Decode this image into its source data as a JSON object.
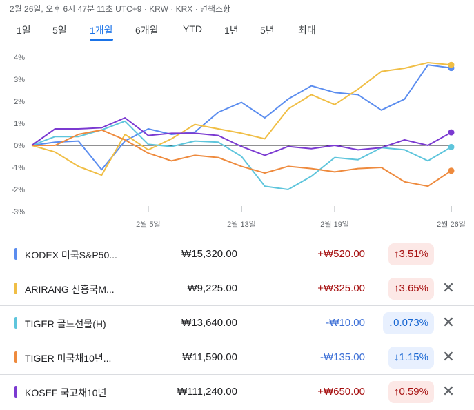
{
  "header": {
    "timestamp": "2월 26일, 오후 6시 47분 11초 UTC+9 · KRW · KRX · 면책조항"
  },
  "ranges": {
    "active_index": 2,
    "items": [
      "1일",
      "5일",
      "1개월",
      "6개월",
      "YTD",
      "1년",
      "5년",
      "최대"
    ]
  },
  "chart_data": {
    "type": "line",
    "yticks": [
      "4%",
      "3%",
      "2%",
      "1%",
      "0%",
      "-1%",
      "-2%",
      "-3%"
    ],
    "ylim": [
      -3,
      4
    ],
    "xlabels": [
      "2월 5일",
      "2월 13일",
      "2월 19일",
      "2월 26일"
    ],
    "xlabel_positions": [
      5,
      9,
      13,
      18
    ],
    "points": 19,
    "series": [
      {
        "name": "KODEX 미국S&P50...",
        "color": "#5b8def",
        "values": [
          0,
          0.15,
          0.2,
          -1.1,
          0.2,
          0.75,
          0.5,
          0.6,
          1.5,
          1.95,
          1.25,
          2.1,
          2.7,
          2.4,
          2.3,
          1.6,
          2.1,
          3.65,
          3.51
        ]
      },
      {
        "name": "ARIRANG 신흥국M...",
        "color": "#f0be45",
        "values": [
          0,
          -0.3,
          -0.95,
          -1.35,
          0.5,
          -0.2,
          0.3,
          0.95,
          0.75,
          0.55,
          0.3,
          1.65,
          2.3,
          1.85,
          2.55,
          3.35,
          3.5,
          3.75,
          3.65
        ]
      },
      {
        "name": "TIGER 골드선물(H)",
        "color": "#5ec5dc",
        "values": [
          0,
          0.4,
          0.4,
          0.7,
          1.1,
          0.05,
          -0.05,
          0.2,
          0.15,
          -0.5,
          -1.85,
          -2.0,
          -1.4,
          -0.55,
          -0.65,
          -0.1,
          -0.2,
          -0.7,
          -0.073
        ]
      },
      {
        "name": "TIGER 미국채10년...",
        "color": "#ee8a3d",
        "values": [
          0,
          0,
          0.5,
          0.7,
          0.25,
          -0.35,
          -0.7,
          -0.45,
          -0.55,
          -0.95,
          -1.25,
          -0.95,
          -1.05,
          -1.2,
          -1.05,
          -1.0,
          -1.65,
          -1.85,
          -1.15
        ]
      },
      {
        "name": "KOSEF 국고채10년",
        "color": "#7b3ad1",
        "values": [
          0,
          0.75,
          0.75,
          0.8,
          1.25,
          0.45,
          0.55,
          0.55,
          0.45,
          -0.05,
          -0.45,
          -0.05,
          -0.15,
          0,
          -0.2,
          -0.1,
          0.25,
          0,
          0.59
        ]
      }
    ]
  },
  "rows": [
    {
      "name": "KODEX 미국S&P50...",
      "color": "#5b8def",
      "price": "₩15,320.00",
      "change": "+₩520.00",
      "dir": "up",
      "pct": "↑3.51%",
      "removable": false
    },
    {
      "name": "ARIRANG 신흥국M...",
      "color": "#f0be45",
      "price": "₩9,225.00",
      "change": "+₩325.00",
      "dir": "up",
      "pct": "↑3.65%",
      "removable": true
    },
    {
      "name": "TIGER 골드선물(H)",
      "color": "#5ec5dc",
      "price": "₩13,640.00",
      "change": "-₩10.00",
      "dir": "down",
      "pct": "↓0.073%",
      "removable": true
    },
    {
      "name": "TIGER 미국채10년...",
      "color": "#ee8a3d",
      "price": "₩11,590.00",
      "change": "-₩135.00",
      "dir": "down",
      "pct": "↓1.15%",
      "removable": true
    },
    {
      "name": "KOSEF 국고채10년",
      "color": "#7b3ad1",
      "price": "₩111,240.00",
      "change": "+₩650.00",
      "dir": "up",
      "pct": "↑0.59%",
      "removable": true
    }
  ]
}
